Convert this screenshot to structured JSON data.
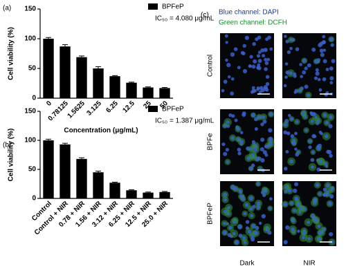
{
  "chart_data": [
    {
      "type": "bar",
      "label": "(a)",
      "annotation": "IC₅₀ = 4.080 μg/mL",
      "ylabel": "Cell viability (%)",
      "xlabel": "Concentration (μg/mL)",
      "categories": [
        "0",
        "0.78125",
        "1.5625",
        "3.125",
        "6.25",
        "12.5",
        "25",
        "50"
      ],
      "series": [
        {
          "name": "BPFeP",
          "color": "#000000",
          "values": [
            100,
            87,
            69,
            50,
            37,
            26,
            18,
            17
          ],
          "errors": [
            2,
            3,
            2,
            3,
            1,
            1,
            1,
            1
          ]
        }
      ],
      "ylim": [
        0,
        150
      ],
      "yticks": [
        0,
        50,
        100,
        150
      ]
    },
    {
      "type": "bar",
      "label": "(b)",
      "annotation": "IC₅₀ = 1.387 μg/mL",
      "ylabel": "Cell viability (%)",
      "categories": [
        "Control",
        "Control + NIR",
        "0.78 + NIR",
        "1.56 + NIR",
        "3.12 + NIR",
        "6.25 + NIR",
        "12.5 + NIR",
        "25.0 + NIR"
      ],
      "series": [
        {
          "name": "BPFeP",
          "color": "#000000",
          "values": [
            100,
            93,
            68,
            45,
            27,
            14,
            10,
            11
          ],
          "errors": [
            2,
            2,
            2,
            2,
            1,
            1,
            1,
            1
          ]
        }
      ],
      "ylim": [
        0,
        150
      ],
      "yticks": [
        0,
        50,
        100,
        150
      ]
    }
  ],
  "panel_c": {
    "label": "(c)",
    "channel_blue": "Blue channel: DAPI",
    "channel_green": "Green channel: DCFH",
    "rows": [
      "Control",
      "BPFe",
      "BPFeP"
    ],
    "columns": [
      "Dark",
      "NIR"
    ]
  }
}
